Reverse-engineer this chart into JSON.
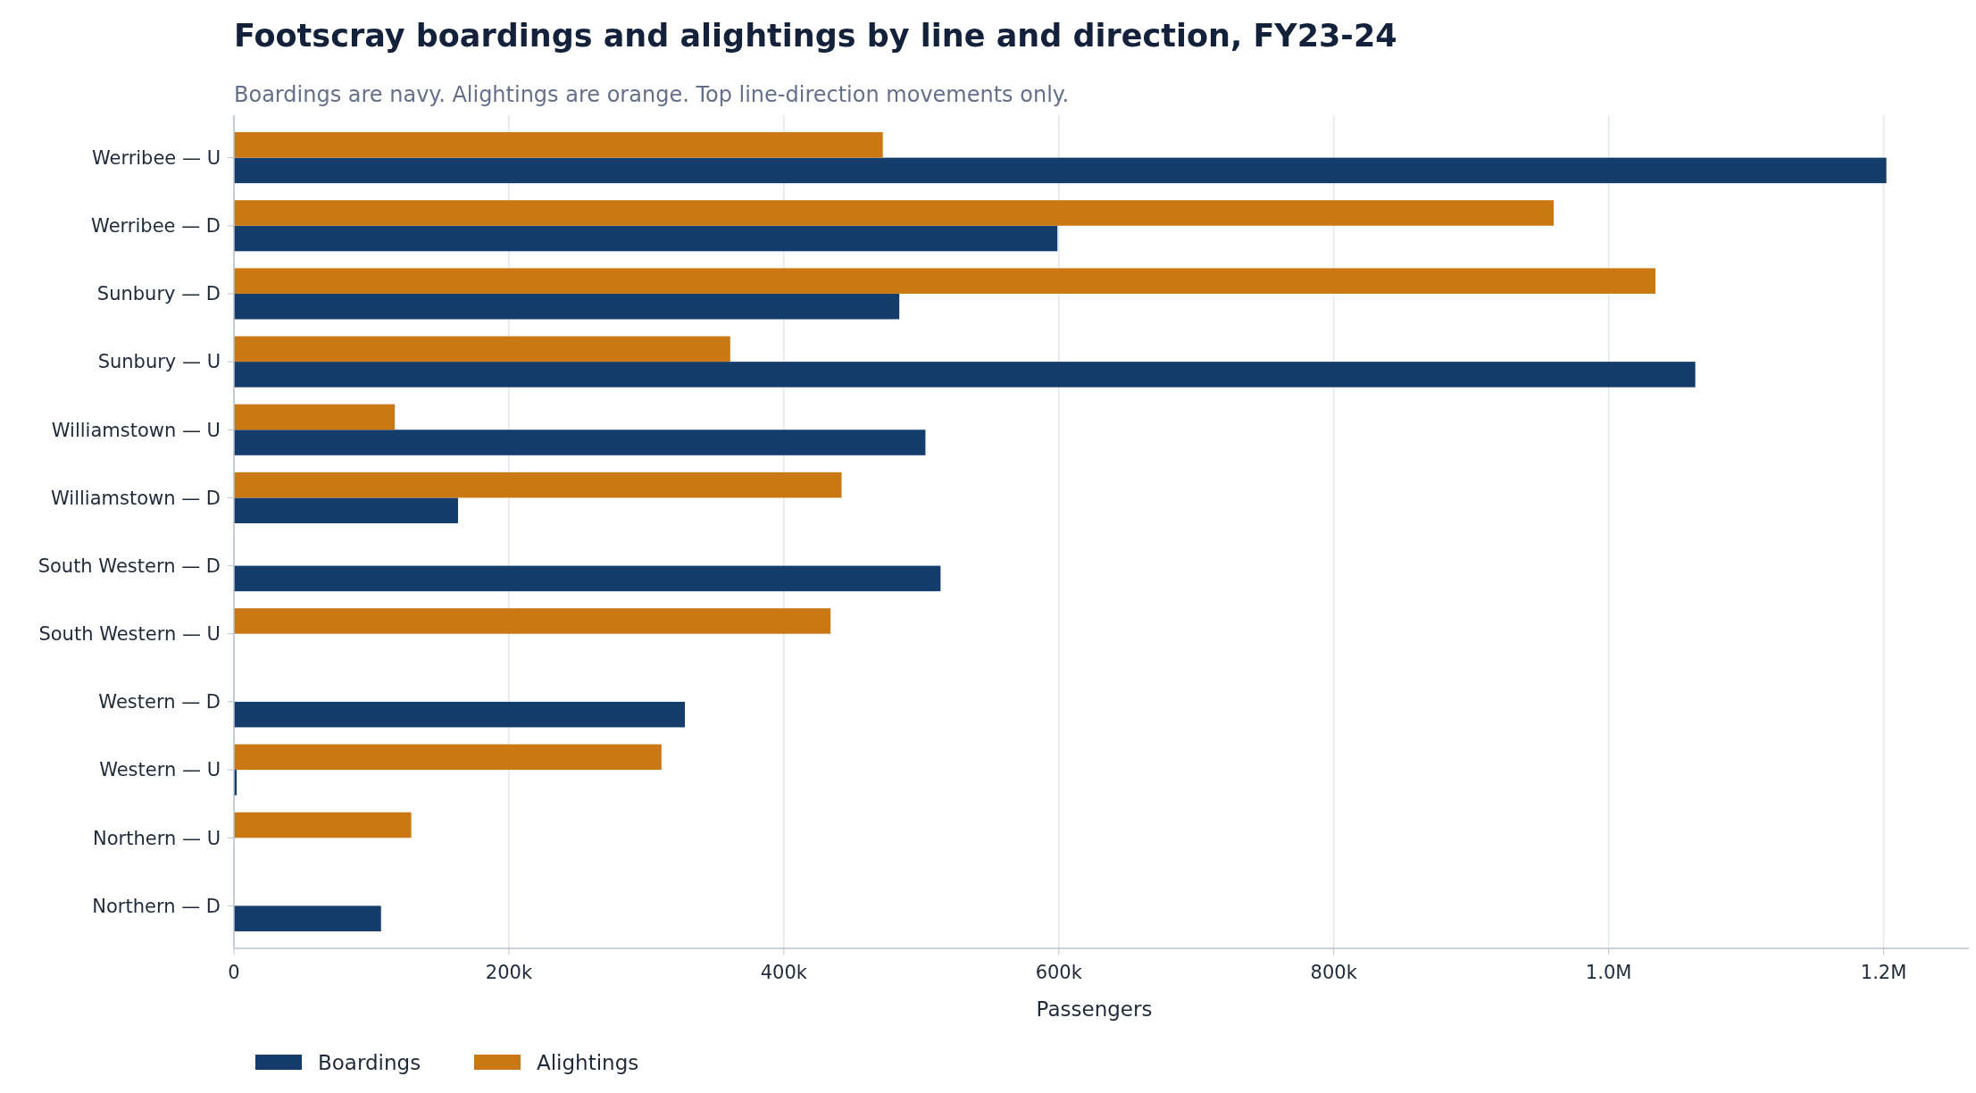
{
  "chart_data": {
    "type": "bar",
    "orientation": "horizontal",
    "title": "Footscray boardings and alightings by line and direction, FY23-24",
    "subtitle": "Boardings are navy. Alightings are orange. Top line-direction movements only.",
    "xlabel": "Passengers",
    "categories": [
      "Werribee — U",
      "Werribee — D",
      "Sunbury — D",
      "Sunbury — U",
      "Williamstown — U",
      "Williamstown — D",
      "South Western — D",
      "South Western — U",
      "Western — D",
      "Western — U",
      "Northern — U",
      "Northern — D"
    ],
    "series": [
      {
        "name": "Boardings",
        "color": "#143d6b",
        "values": [
          1202000,
          599000,
          484000,
          1063000,
          503000,
          163000,
          514000,
          0,
          328000,
          2000,
          0,
          107000
        ]
      },
      {
        "name": "Alightings",
        "color": "#c97814",
        "values": [
          472000,
          960000,
          1034000,
          361000,
          117000,
          442000,
          0,
          434000,
          0,
          311000,
          129000,
          0
        ]
      }
    ],
    "xlim": [
      0,
      1262000
    ],
    "xticks": [
      0,
      {
        "value": 200000,
        "label": "200k"
      },
      {
        "value": 400000,
        "label": "400k"
      },
      {
        "value": 600000,
        "label": "600k"
      },
      {
        "value": 800000,
        "label": "800k"
      },
      {
        "value": 1000000,
        "label": "1.0M"
      },
      {
        "value": 1200000,
        "label": "1.2M"
      }
    ],
    "grid": "x",
    "legend": "bottom"
  }
}
